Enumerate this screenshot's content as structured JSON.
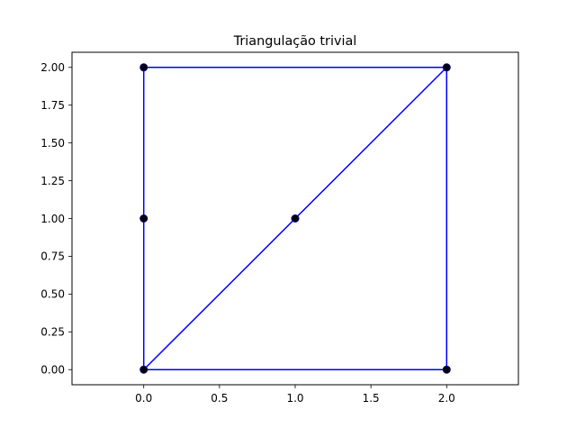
{
  "chart_data": {
    "type": "line",
    "title": "Triangulação trivial",
    "xlabel": "",
    "ylabel": "",
    "xlim": [
      -0.4737,
      2.4737
    ],
    "ylim": [
      -0.1,
      2.1
    ],
    "grid": false,
    "x_ticks": [
      0.0,
      0.5,
      1.0,
      1.5,
      2.0
    ],
    "x_tick_labels": [
      "0.0",
      "0.5",
      "1.0",
      "1.5",
      "2.0"
    ],
    "y_ticks": [
      0.0,
      0.25,
      0.5,
      0.75,
      1.0,
      1.25,
      1.5,
      1.75,
      2.0
    ],
    "y_tick_labels": [
      "0.00",
      "0.25",
      "0.50",
      "0.75",
      "1.00",
      "1.25",
      "1.50",
      "1.75",
      "2.00"
    ],
    "points": [
      {
        "x": 0,
        "y": 0
      },
      {
        "x": 2,
        "y": 0
      },
      {
        "x": 2,
        "y": 2
      },
      {
        "x": 0,
        "y": 2
      },
      {
        "x": 0,
        "y": 1
      },
      {
        "x": 1,
        "y": 1
      }
    ],
    "segments": [
      [
        [
          0,
          0
        ],
        [
          2,
          0
        ]
      ],
      [
        [
          2,
          0
        ],
        [
          2,
          2
        ]
      ],
      [
        [
          2,
          2
        ],
        [
          0,
          2
        ]
      ],
      [
        [
          0,
          2
        ],
        [
          0,
          0
        ]
      ],
      [
        [
          0,
          0
        ],
        [
          2,
          2
        ]
      ]
    ],
    "colors": {
      "edges": "#0000ff",
      "points": "#000000",
      "points_edge": "#000080"
    }
  }
}
